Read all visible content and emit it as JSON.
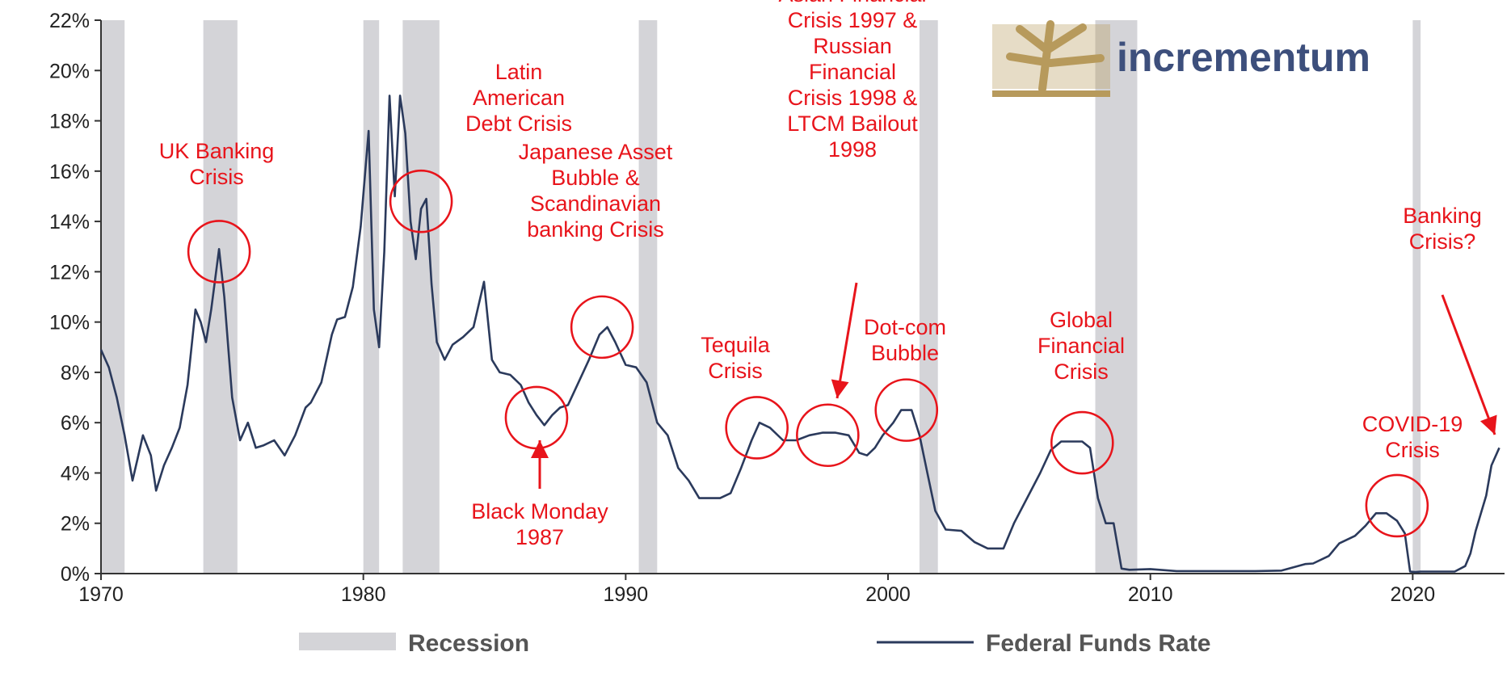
{
  "chart_data": {
    "type": "line",
    "title": "",
    "xlabel": "",
    "ylabel": "",
    "xlim": [
      1970,
      2023.5
    ],
    "ylim": [
      0,
      22
    ],
    "x_ticks": [
      1970,
      1980,
      1990,
      2000,
      2010,
      2020
    ],
    "y_ticks": [
      0,
      2,
      4,
      6,
      8,
      10,
      12,
      14,
      16,
      18,
      20,
      22
    ],
    "y_tick_labels": [
      "0%",
      "2%",
      "4%",
      "6%",
      "8%",
      "10%",
      "12%",
      "14%",
      "16%",
      "18%",
      "20%",
      "22%"
    ],
    "grid": false,
    "legend_position": "bottom",
    "series": [
      {
        "name": "Federal Funds Rate",
        "color": "#2b3a5c",
        "x": [
          1970.0,
          1970.3,
          1970.6,
          1970.9,
          1971.2,
          1971.4,
          1971.6,
          1971.9,
          1972.1,
          1972.4,
          1972.7,
          1973.0,
          1973.3,
          1973.6,
          1973.8,
          1974.0,
          1974.2,
          1974.5,
          1974.7,
          1975.0,
          1975.3,
          1975.6,
          1975.9,
          1976.2,
          1976.6,
          1977.0,
          1977.4,
          1977.8,
          1978.0,
          1978.4,
          1978.8,
          1979.0,
          1979.3,
          1979.6,
          1979.9,
          1980.2,
          1980.4,
          1980.6,
          1980.8,
          1981.0,
          1981.2,
          1981.4,
          1981.6,
          1981.8,
          1982.0,
          1982.2,
          1982.4,
          1982.6,
          1982.8,
          1983.1,
          1983.4,
          1983.8,
          1984.2,
          1984.6,
          1984.9,
          1985.2,
          1985.6,
          1986.0,
          1986.3,
          1986.6,
          1986.9,
          1987.2,
          1987.5,
          1987.8,
          1988.2,
          1988.6,
          1989.0,
          1989.3,
          1989.6,
          1990.0,
          1990.4,
          1990.8,
          1991.2,
          1991.6,
          1992.0,
          1992.4,
          1992.8,
          1993.2,
          1993.6,
          1994.0,
          1994.4,
          1994.8,
          1995.1,
          1995.5,
          1996.0,
          1996.5,
          1997.0,
          1997.5,
          1998.0,
          1998.5,
          1998.9,
          1999.2,
          1999.5,
          1999.8,
          2000.2,
          2000.5,
          2000.9,
          2001.2,
          2001.5,
          2001.8,
          2002.2,
          2002.8,
          2003.3,
          2003.8,
          2004.4,
          2004.8,
          2005.3,
          2005.8,
          2006.2,
          2006.6,
          2007.0,
          2007.4,
          2007.7,
          2008.0,
          2008.3,
          2008.6,
          2008.9,
          2009.2,
          2010.0,
          2011.0,
          2012.0,
          2013.0,
          2014.0,
          2015.0,
          2015.9,
          2016.2,
          2016.8,
          2017.2,
          2017.8,
          2018.2,
          2018.6,
          2019.0,
          2019.4,
          2019.7,
          2019.9,
          2020.1,
          2020.3,
          2020.6,
          2021.0,
          2021.6,
          2022.0,
          2022.2,
          2022.4,
          2022.6,
          2022.8,
          2023.0,
          2023.3
        ],
        "y": [
          8.9,
          8.2,
          7.0,
          5.5,
          3.7,
          4.6,
          5.5,
          4.7,
          3.3,
          4.3,
          5.0,
          5.8,
          7.5,
          10.5,
          10.0,
          9.2,
          10.5,
          12.9,
          11.0,
          7.0,
          5.3,
          6.0,
          5.0,
          5.1,
          5.3,
          4.7,
          5.5,
          6.6,
          6.8,
          7.6,
          9.5,
          10.1,
          10.2,
          11.4,
          13.8,
          17.6,
          10.5,
          9.0,
          12.8,
          19.0,
          15.0,
          19.0,
          17.5,
          14.0,
          12.5,
          14.5,
          14.9,
          11.5,
          9.2,
          8.5,
          9.1,
          9.4,
          9.8,
          11.6,
          8.5,
          8.0,
          7.9,
          7.5,
          6.8,
          6.3,
          5.9,
          6.3,
          6.6,
          6.7,
          7.6,
          8.5,
          9.5,
          9.8,
          9.2,
          8.3,
          8.2,
          7.6,
          6.0,
          5.5,
          4.2,
          3.7,
          3.0,
          3.0,
          3.0,
          3.2,
          4.2,
          5.3,
          6.0,
          5.8,
          5.3,
          5.3,
          5.5,
          5.6,
          5.6,
          5.5,
          4.8,
          4.7,
          5.0,
          5.5,
          6.0,
          6.5,
          6.5,
          5.5,
          4.0,
          2.5,
          1.75,
          1.7,
          1.25,
          1.0,
          1.0,
          2.0,
          3.0,
          4.0,
          4.9,
          5.25,
          5.25,
          5.25,
          5.0,
          3.0,
          2.0,
          2.0,
          0.2,
          0.15,
          0.18,
          0.1,
          0.1,
          0.1,
          0.1,
          0.12,
          0.38,
          0.4,
          0.7,
          1.2,
          1.5,
          1.9,
          2.4,
          2.4,
          2.1,
          1.6,
          0.08,
          0.06,
          0.08,
          0.08,
          0.08,
          0.08,
          0.3,
          0.8,
          1.7,
          2.4,
          3.1,
          4.3,
          5.0
        ]
      }
    ],
    "recessions": [
      [
        1970.0,
        1970.9
      ],
      [
        1973.9,
        1975.2
      ],
      [
        1980.0,
        1980.6
      ],
      [
        1981.5,
        1982.9
      ],
      [
        1990.5,
        1991.2
      ],
      [
        2001.2,
        2001.9
      ],
      [
        2007.9,
        2009.5
      ],
      [
        2020.0,
        2020.3
      ]
    ],
    "annotations": [
      {
        "lines": [
          "UK Banking",
          "Crisis"
        ],
        "target": [
          1974.5,
          12.8
        ]
      },
      {
        "lines": [
          "Latin",
          "American",
          "Debt Crisis"
        ],
        "target": [
          1982.2,
          14.8
        ]
      },
      {
        "lines": [
          "Japanese Asset",
          "Bubble &",
          "Scandinavian",
          "banking Crisis"
        ],
        "target": [
          1989.1,
          9.8
        ]
      },
      {
        "lines": [
          "Black Monday",
          "1987"
        ],
        "target": [
          1986.6,
          6.2
        ]
      },
      {
        "lines": [
          "Asian Financial",
          "Crisis 1997 &",
          "Russian",
          "Financial",
          "Crisis 1998 &",
          "LTCM Bailout",
          "1998"
        ],
        "target": [
          1997.7,
          5.5
        ]
      },
      {
        "lines": [
          "Tequila",
          "Crisis"
        ],
        "target": [
          1995.0,
          5.8
        ]
      },
      {
        "lines": [
          "Dot-com",
          "Bubble"
        ],
        "target": [
          2000.7,
          6.5
        ]
      },
      {
        "lines": [
          "Global",
          "Financial",
          "Crisis"
        ],
        "target": [
          2007.4,
          5.2
        ]
      },
      {
        "lines": [
          "COVID-19",
          "Crisis"
        ],
        "target": [
          2019.4,
          2.7
        ]
      },
      {
        "lines": [
          "Banking",
          "Crisis?"
        ],
        "target": [
          2023.2,
          5.5
        ]
      }
    ],
    "legend": [
      {
        "label": "Recession",
        "kind": "band",
        "color": "#d4d4d8"
      },
      {
        "label": "Federal Funds Rate",
        "kind": "line",
        "color": "#2b3a5c"
      }
    ]
  },
  "logo": {
    "text": "incrementum",
    "icon": "tree-icon",
    "icon_color": "#b79a5c",
    "text_color": "#3d4f7c"
  },
  "colors": {
    "accent": "#e8141b",
    "line": "#2b3a5c",
    "recession": "#d4d4d8"
  }
}
